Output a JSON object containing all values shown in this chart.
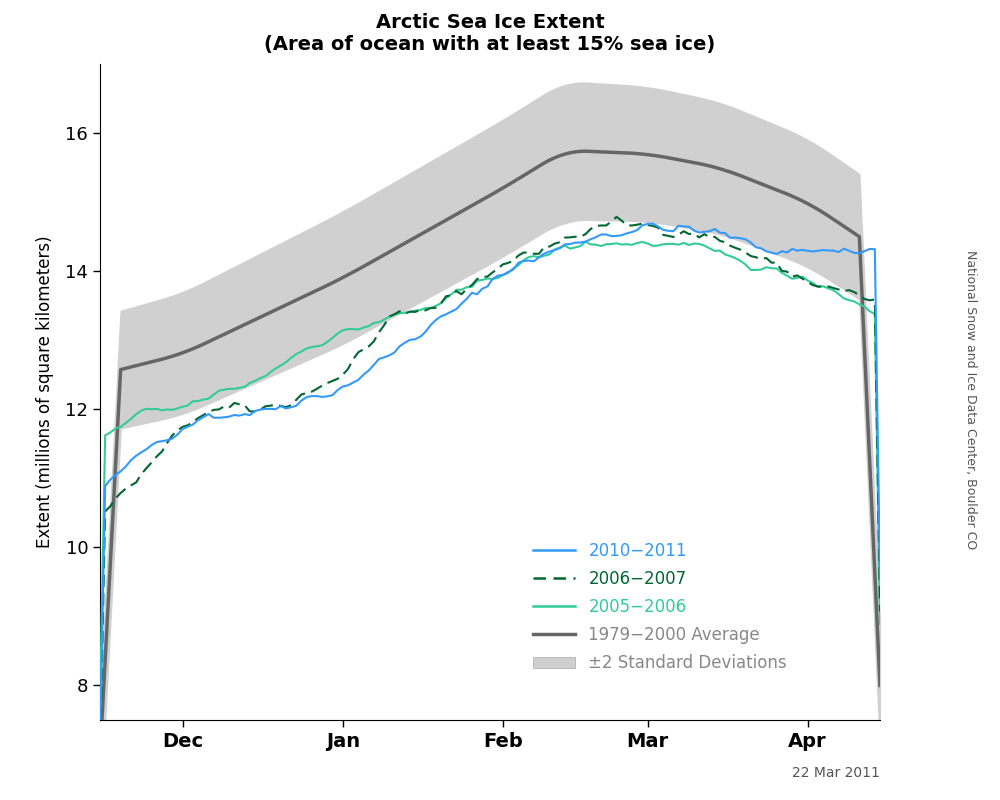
{
  "title": "Arctic Sea Ice Extent",
  "subtitle": "(Area of ocean with at least 15% sea ice)",
  "ylabel": "Extent (millions of square kilometers)",
  "watermark": "National Snow and Ice Data Center, Boulder CO",
  "date_label": "22 Mar 2011",
  "ylim": [
    7.5,
    17.0
  ],
  "yticks": [
    8,
    10,
    12,
    14,
    16
  ],
  "xtick_labels": [
    "Dec",
    "Jan",
    "Feb",
    "Mar",
    "Apr"
  ],
  "colors": {
    "line_2011": "#3399ff",
    "line_2007": "#006633",
    "line_2006": "#33cc99",
    "average": "#666666",
    "std_fill": "#d0d0d0"
  },
  "legend_labels": [
    "2010−2011",
    "2006−2007",
    "2005−2006",
    "1979−2000 Average",
    "±2 Standard Deviations"
  ]
}
